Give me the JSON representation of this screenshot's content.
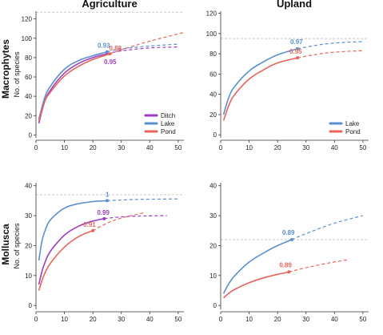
{
  "colors": {
    "Ditch": "#9b3fbf",
    "Lake": "#5b8fd0",
    "Pond": "#e8645a"
  },
  "row_labels": [
    "Macrophytes",
    "Mollusca"
  ],
  "col_labels": [
    "Agriculture",
    "Upland"
  ],
  "chart_data": [
    {
      "type": "line",
      "row": "Macrophytes",
      "title": "Agriculture",
      "ylabel": "No. of species",
      "xlim": [
        0,
        52
      ],
      "ylim": [
        -3,
        128
      ],
      "xticks": [
        0,
        10,
        20,
        30,
        40,
        50
      ],
      "yticks": [
        0,
        20,
        40,
        60,
        80,
        100,
        120
      ],
      "asymptote": 127,
      "legend": "bottom-right",
      "series": [
        {
          "name": "Ditch",
          "color": "#9b3fbf",
          "x_obs_end": 25,
          "x_ext_end": 50,
          "interpolated": [
            [
              1,
              12
            ],
            [
              3,
              34
            ],
            [
              5,
              46
            ],
            [
              10,
              64
            ],
            [
              15,
              74
            ],
            [
              20,
              80
            ],
            [
              25,
              84
            ]
          ],
          "extrapolated": [
            [
              25,
              84
            ],
            [
              30,
              87
            ],
            [
              40,
              90
            ],
            [
              50,
              91
            ]
          ],
          "label": "0.95",
          "label_at": [
            25,
            84
          ]
        },
        {
          "name": "Lake",
          "color": "#5b8fd0",
          "x_obs_end": 25,
          "x_ext_end": 50,
          "interpolated": [
            [
              1,
              16
            ],
            [
              3,
              38
            ],
            [
              5,
              50
            ],
            [
              10,
              68
            ],
            [
              15,
              77
            ],
            [
              20,
              82
            ],
            [
              25,
              86
            ]
          ],
          "extrapolated": [
            [
              25,
              86
            ],
            [
              30,
              89
            ],
            [
              40,
              92
            ],
            [
              50,
              94
            ]
          ],
          "label": "0.93",
          "label_at": [
            25,
            86
          ]
        },
        {
          "name": "Pond",
          "color": "#e8645a",
          "x_obs_end": 26,
          "x_ext_end": 52,
          "interpolated": [
            [
              1,
              14
            ],
            [
              3,
              34
            ],
            [
              5,
              44
            ],
            [
              10,
              61
            ],
            [
              15,
              71
            ],
            [
              20,
              78
            ],
            [
              26,
              84
            ]
          ],
          "extrapolated": [
            [
              26,
              84
            ],
            [
              30,
              88
            ],
            [
              40,
              97
            ],
            [
              52,
              106
            ]
          ],
          "label": "0.88",
          "label_at": [
            26,
            84
          ]
        }
      ]
    },
    {
      "type": "line",
      "row": "Macrophytes",
      "title": "Upland",
      "ylabel": "",
      "xlim": [
        0,
        52
      ],
      "ylim": [
        -3,
        122
      ],
      "xticks": [
        0,
        10,
        20,
        30,
        40,
        50
      ],
      "yticks": [
        0,
        20,
        40,
        60,
        80,
        100,
        120
      ],
      "asymptote": 95,
      "legend": "bottom-right",
      "series": [
        {
          "name": "Lake",
          "color": "#5b8fd0",
          "x_obs_end": 27,
          "x_ext_end": 50,
          "interpolated": [
            [
              1,
              20
            ],
            [
              3,
              38
            ],
            [
              5,
              48
            ],
            [
              10,
              63
            ],
            [
              15,
              72
            ],
            [
              20,
              79
            ],
            [
              27,
              85
            ]
          ],
          "extrapolated": [
            [
              27,
              85
            ],
            [
              35,
              89
            ],
            [
              42,
              91
            ],
            [
              50,
              92
            ]
          ],
          "label": "0.97",
          "label_at": [
            27,
            85
          ]
        },
        {
          "name": "Pond",
          "color": "#e8645a",
          "x_obs_end": 27,
          "x_ext_end": 50,
          "interpolated": [
            [
              1,
              14
            ],
            [
              3,
              30
            ],
            [
              5,
              40
            ],
            [
              10,
              55
            ],
            [
              15,
              64
            ],
            [
              20,
              71
            ],
            [
              27,
              76
            ]
          ],
          "extrapolated": [
            [
              27,
              76
            ],
            [
              35,
              80
            ],
            [
              42,
              82
            ],
            [
              50,
              83
            ]
          ],
          "label": "0.95",
          "label_at": [
            27,
            76
          ]
        }
      ]
    },
    {
      "type": "line",
      "row": "Mollusca",
      "title": "",
      "ylabel": "No. of species",
      "xlim": [
        0,
        52
      ],
      "ylim": [
        -1.3,
        41
      ],
      "xticks": [
        0,
        10,
        20,
        30,
        40,
        50
      ],
      "yticks": [
        0,
        10,
        20,
        30,
        40
      ],
      "asymptote": 37,
      "legend": "",
      "series": [
        {
          "name": "Lake",
          "color": "#5b8fd0",
          "x_obs_end": 25,
          "x_ext_end": 50,
          "interpolated": [
            [
              1,
              15
            ],
            [
              2,
              21
            ],
            [
              3,
              24.5
            ],
            [
              5,
              28.5
            ],
            [
              10,
              32.5
            ],
            [
              15,
              34
            ],
            [
              20,
              34.7
            ],
            [
              25,
              35
            ]
          ],
          "extrapolated": [
            [
              25,
              35
            ],
            [
              35,
              35.4
            ],
            [
              50,
              35.6
            ]
          ],
          "label": "1",
          "label_at": [
            25,
            35
          ]
        },
        {
          "name": "Ditch",
          "color": "#9b3fbf",
          "x_obs_end": 24,
          "x_ext_end": 46,
          "interpolated": [
            [
              1,
              7
            ],
            [
              2,
              11
            ],
            [
              3,
              14
            ],
            [
              5,
              18
            ],
            [
              10,
              23.5
            ],
            [
              15,
              26.5
            ],
            [
              20,
              28.2
            ],
            [
              24,
              29
            ]
          ],
          "extrapolated": [
            [
              24,
              29
            ],
            [
              30,
              29.6
            ],
            [
              38,
              29.9
            ],
            [
              46,
              30
            ]
          ],
          "label": "0.99",
          "label_at": [
            24,
            29
          ]
        },
        {
          "name": "Pond",
          "color": "#e8645a",
          "x_obs_end": 20,
          "x_ext_end": 38,
          "interpolated": [
            [
              1,
              5
            ],
            [
              2,
              8
            ],
            [
              3,
              10.5
            ],
            [
              5,
              14
            ],
            [
              10,
              19.5
            ],
            [
              15,
              23
            ],
            [
              20,
              25
            ]
          ],
          "extrapolated": [
            [
              20,
              25
            ],
            [
              25,
              27.5
            ],
            [
              30,
              29.2
            ],
            [
              38,
              31
            ]
          ],
          "label": "0.91",
          "label_at": [
            20,
            25
          ]
        }
      ]
    },
    {
      "type": "line",
      "row": "Mollusca",
      "title": "",
      "ylabel": "",
      "xlim": [
        0,
        52
      ],
      "ylim": [
        -1.3,
        41
      ],
      "xticks": [
        0,
        10,
        20,
        30,
        40,
        50
      ],
      "yticks": [
        0,
        10,
        20,
        30,
        40
      ],
      "asymptote": 22,
      "legend": "",
      "series": [
        {
          "name": "Lake",
          "color": "#5b8fd0",
          "x_obs_end": 25,
          "x_ext_end": 50,
          "interpolated": [
            [
              1,
              4
            ],
            [
              3,
              7.5
            ],
            [
              5,
              10
            ],
            [
              10,
              14.5
            ],
            [
              15,
              17.5
            ],
            [
              20,
              20
            ],
            [
              25,
              22
            ]
          ],
          "extrapolated": [
            [
              25,
              22
            ],
            [
              30,
              24
            ],
            [
              40,
              27.5
            ],
            [
              50,
              30
            ]
          ],
          "label": "0.89",
          "label_at": [
            25,
            22
          ]
        },
        {
          "name": "Pond",
          "color": "#e8645a",
          "x_obs_end": 24,
          "x_ext_end": 45,
          "interpolated": [
            [
              1,
              2.5
            ],
            [
              3,
              4.2
            ],
            [
              5,
              5.4
            ],
            [
              10,
              7.6
            ],
            [
              15,
              9.2
            ],
            [
              20,
              10.4
            ],
            [
              24,
              11.2
            ]
          ],
          "extrapolated": [
            [
              24,
              11.2
            ],
            [
              30,
              12.6
            ],
            [
              38,
              14.2
            ],
            [
              45,
              15.3
            ]
          ],
          "label": "0.89",
          "label_at": [
            24,
            11.2
          ]
        }
      ]
    }
  ]
}
